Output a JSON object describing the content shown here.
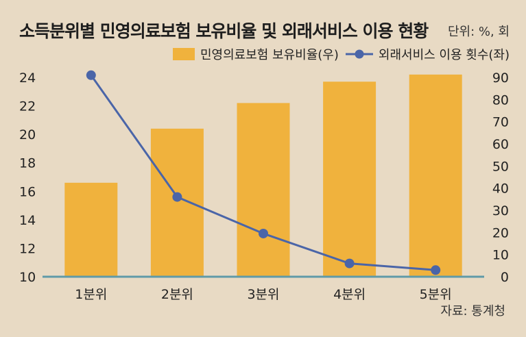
{
  "title": "소득분위별 민영의료보험 보유비율 및 외래서비스 이용 현황",
  "unit": "단위: %, 회",
  "source": "자료: 통계청",
  "colors": {
    "bar": "#f0b23d",
    "line": "#4a65a8",
    "axis": "#5f9aa8",
    "background": "#e8dac4"
  },
  "chart_data": {
    "type": "bar",
    "categories": [
      "1분위",
      "2분위",
      "3분위",
      "4분위",
      "5분위"
    ],
    "series": [
      {
        "name": "민영의료보험 보유비율(우)",
        "type": "bar",
        "axis": "left",
        "values": [
          16.6,
          20.4,
          22.2,
          23.7,
          24.2
        ]
      },
      {
        "name": "외래서비스 이용 횟수(좌)",
        "type": "line",
        "axis": "right",
        "values": [
          91,
          36,
          19.5,
          6,
          3
        ]
      }
    ],
    "y_left": {
      "ylim": [
        10,
        25
      ],
      "ticks": [
        10,
        12,
        14,
        16,
        18,
        20,
        22,
        24
      ]
    },
    "y_right": {
      "ylim": [
        0,
        95
      ],
      "ticks": [
        0,
        10,
        20,
        30,
        40,
        50,
        60,
        70,
        80,
        90
      ]
    },
    "legend": "top-right",
    "grid": false
  }
}
